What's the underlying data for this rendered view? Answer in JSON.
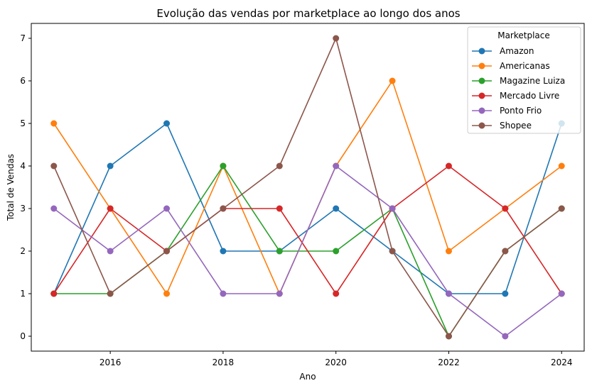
{
  "chart_data": {
    "type": "line",
    "title": "Evolução das vendas por marketplace ao longo dos anos",
    "xlabel": "Ano",
    "ylabel": "Total de Vendas",
    "xlim": [
      2014.6,
      2024.4
    ],
    "ylim": [
      -0.35,
      7.35
    ],
    "xticks": [
      2016,
      2018,
      2020,
      2022,
      2024
    ],
    "yticks": [
      0,
      1,
      2,
      3,
      4,
      5,
      6,
      7
    ],
    "grid": false,
    "legend": {
      "title": "Marketplace",
      "placement": "top-right"
    },
    "x": [
      2015,
      2016,
      2017,
      2018,
      2019,
      2020,
      2021,
      2022,
      2023,
      2024
    ],
    "series": [
      {
        "name": "Amazon",
        "color": "#1f77b4",
        "values": [
          1,
          4,
          5,
          2,
          2,
          3,
          2,
          1,
          1,
          5
        ]
      },
      {
        "name": "Americanas",
        "color": "#ff7f0e",
        "values": [
          5,
          3,
          1,
          4,
          1,
          4,
          6,
          2,
          3,
          4
        ]
      },
      {
        "name": "Magazine Luiza",
        "color": "#2ca02c",
        "values": [
          1,
          1,
          2,
          4,
          2,
          2,
          3,
          0,
          2,
          3
        ]
      },
      {
        "name": "Mercado Livre",
        "color": "#d62728",
        "values": [
          1,
          3,
          2,
          3,
          3,
          1,
          3,
          4,
          3,
          1
        ]
      },
      {
        "name": "Ponto Frio",
        "color": "#9467bd",
        "values": [
          3,
          2,
          3,
          1,
          1,
          4,
          3,
          1,
          0,
          1
        ]
      },
      {
        "name": "Shopee",
        "color": "#8c564b",
        "values": [
          4,
          1,
          2,
          3,
          4,
          7,
          2,
          0,
          2,
          3
        ]
      }
    ]
  }
}
